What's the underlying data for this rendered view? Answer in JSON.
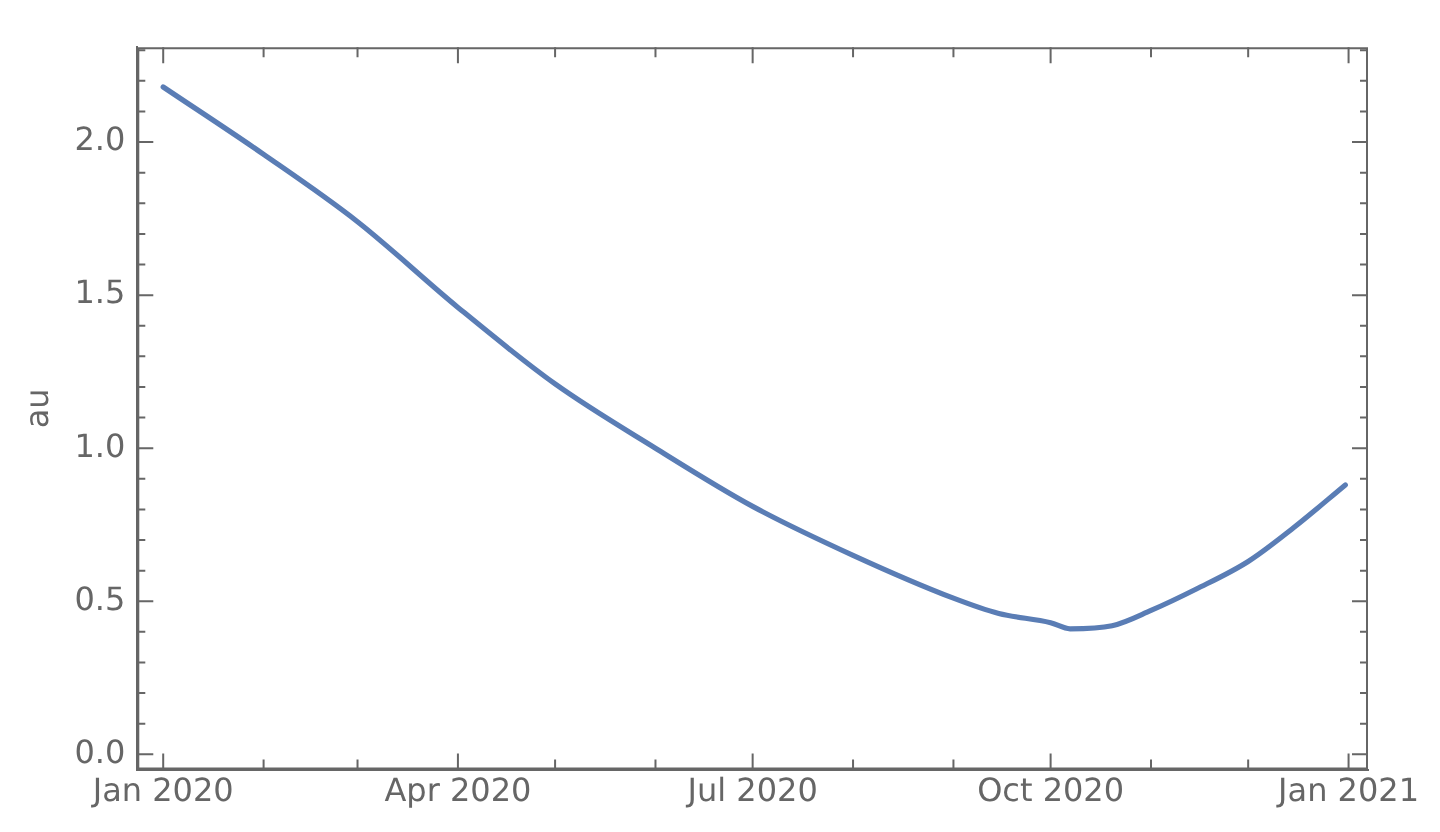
{
  "chart_data": {
    "type": "line",
    "ylabel": "au",
    "x": [
      "2020-01-01",
      "2020-02-01",
      "2020-03-01",
      "2020-04-01",
      "2020-05-01",
      "2020-06-01",
      "2020-07-01",
      "2020-08-01",
      "2020-09-01",
      "2020-09-15",
      "2020-10-01",
      "2020-10-07",
      "2020-10-20",
      "2020-11-01",
      "2020-11-15",
      "2020-12-01",
      "2020-12-15",
      "2020-12-31"
    ],
    "series": [
      {
        "color": "#5a7db5",
        "values": [
          2.18,
          1.96,
          1.74,
          1.46,
          1.21,
          1.0,
          0.81,
          0.65,
          0.51,
          0.46,
          0.43,
          0.41,
          0.42,
          0.47,
          0.54,
          0.63,
          0.74,
          0.88
        ]
      }
    ],
    "xlim": [
      "2019-12-24",
      "2021-01-07"
    ],
    "xticks": [
      {
        "value": "2020-01-01",
        "label": "Jan 2020"
      },
      {
        "value": "2020-02-01",
        "label": null
      },
      {
        "value": "2020-03-01",
        "label": null
      },
      {
        "value": "2020-04-01",
        "label": "Apr 2020"
      },
      {
        "value": "2020-05-01",
        "label": null
      },
      {
        "value": "2020-06-01",
        "label": null
      },
      {
        "value": "2020-07-01",
        "label": "Jul 2020"
      },
      {
        "value": "2020-08-01",
        "label": null
      },
      {
        "value": "2020-09-01",
        "label": null
      },
      {
        "value": "2020-10-01",
        "label": "Oct 2020"
      },
      {
        "value": "2020-11-01",
        "label": null
      },
      {
        "value": "2020-12-01",
        "label": null
      },
      {
        "value": "2021-01-01",
        "label": "Jan 2021"
      }
    ],
    "ylim": [
      -0.05,
      2.31
    ],
    "yticks": [
      {
        "value": 0,
        "label": "0.0"
      },
      {
        "value": 0.1,
        "label": null
      },
      {
        "value": 0.2,
        "label": null
      },
      {
        "value": 0.3,
        "label": null
      },
      {
        "value": 0.4,
        "label": null
      },
      {
        "value": 0.5,
        "label": "0.5"
      },
      {
        "value": 0.6,
        "label": null
      },
      {
        "value": 0.7,
        "label": null
      },
      {
        "value": 0.8,
        "label": null
      },
      {
        "value": 0.9,
        "label": null
      },
      {
        "value": 1.0,
        "label": "1.0"
      },
      {
        "value": 1.1,
        "label": null
      },
      {
        "value": 1.2,
        "label": null
      },
      {
        "value": 1.3,
        "label": null
      },
      {
        "value": 1.4,
        "label": null
      },
      {
        "value": 1.5,
        "label": "1.5"
      },
      {
        "value": 1.6,
        "label": null
      },
      {
        "value": 1.7,
        "label": null
      },
      {
        "value": 1.8,
        "label": null
      },
      {
        "value": 1.9,
        "label": null
      },
      {
        "value": 2.0,
        "label": "2.0"
      },
      {
        "value": 2.1,
        "label": null
      },
      {
        "value": 2.2,
        "label": null
      },
      {
        "value": 2.3,
        "label": null
      }
    ],
    "grid": false,
    "legend": false,
    "line_style": "solid",
    "marker": "none"
  }
}
